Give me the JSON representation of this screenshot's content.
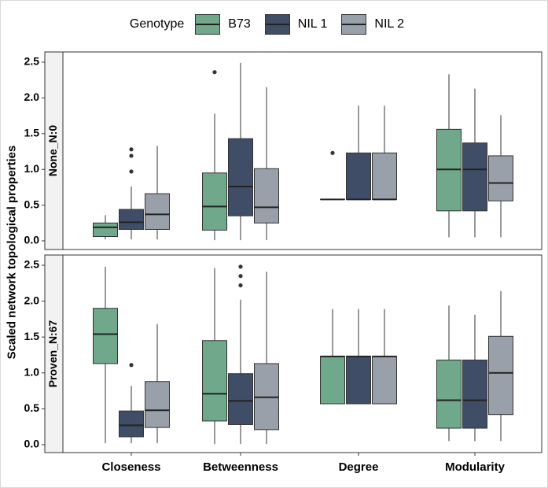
{
  "legend": {
    "title": "Genotype",
    "items": [
      {
        "label": "B73",
        "color": "#6fa88a"
      },
      {
        "label": "NIL 1",
        "color": "#3f4e66"
      },
      {
        "label": "NIL 2",
        "color": "#9aa0aa"
      }
    ]
  },
  "ylabel": "Scaled network topological properties",
  "chart_data": {
    "type": "box",
    "categories": [
      "Closeness",
      "Betweenness",
      "Degree",
      "Modularity"
    ],
    "groups": [
      "B73",
      "NIL 1",
      "NIL 2"
    ],
    "ylim": [
      0,
      2.5
    ],
    "yticks": [
      "0.0",
      "0.5",
      "1.0",
      "1.5",
      "2.0",
      "2.5"
    ],
    "facets": [
      {
        "label": "None_N:0",
        "boxes": [
          [
            {
              "min": 0.02,
              "q1": 0.06,
              "median": 0.19,
              "q3": 0.25,
              "max": 0.36,
              "outliers": []
            },
            {
              "min": 0.02,
              "q1": 0.16,
              "median": 0.26,
              "q3": 0.44,
              "max": 0.76,
              "outliers": [
                0.97,
                1.19,
                1.28
              ]
            },
            {
              "min": 0.02,
              "q1": 0.16,
              "median": 0.37,
              "q3": 0.66,
              "max": 1.33,
              "outliers": []
            }
          ],
          [
            {
              "min": 0.01,
              "q1": 0.15,
              "median": 0.48,
              "q3": 0.95,
              "max": 1.78,
              "outliers": [
                2.36
              ]
            },
            {
              "min": 0.01,
              "q1": 0.35,
              "median": 0.76,
              "q3": 1.43,
              "max": 2.49,
              "outliers": []
            },
            {
              "min": 0.01,
              "q1": 0.25,
              "median": 0.47,
              "q3": 1.01,
              "max": 2.15,
              "outliers": []
            }
          ],
          [
            {
              "min": 0.58,
              "q1": 0.58,
              "median": 0.58,
              "q3": 0.58,
              "max": 0.58,
              "outliers": [
                1.23
              ]
            },
            {
              "min": 0.58,
              "q1": 0.58,
              "median": 0.58,
              "q3": 1.23,
              "max": 1.89,
              "outliers": []
            },
            {
              "min": 0.58,
              "q1": 0.58,
              "median": 0.58,
              "q3": 1.23,
              "max": 1.89,
              "outliers": []
            }
          ],
          [
            {
              "min": 0.05,
              "q1": 0.42,
              "median": 1.0,
              "q3": 1.56,
              "max": 2.33,
              "outliers": []
            },
            {
              "min": 0.05,
              "q1": 0.42,
              "median": 1.0,
              "q3": 1.37,
              "max": 2.13,
              "outliers": []
            },
            {
              "min": 0.05,
              "q1": 0.56,
              "median": 0.81,
              "q3": 1.19,
              "max": 1.76,
              "outliers": []
            }
          ]
        ]
      },
      {
        "label": "Proven_N:67",
        "boxes": [
          [
            {
              "min": 0.02,
              "q1": 1.13,
              "median": 1.54,
              "q3": 1.9,
              "max": 2.48,
              "outliers": []
            },
            {
              "min": 0.02,
              "q1": 0.11,
              "median": 0.27,
              "q3": 0.47,
              "max": 0.82,
              "outliers": [
                1.11
              ]
            },
            {
              "min": 0.02,
              "q1": 0.24,
              "median": 0.48,
              "q3": 0.88,
              "max": 1.68,
              "outliers": []
            }
          ],
          [
            {
              "min": 0.01,
              "q1": 0.33,
              "median": 0.71,
              "q3": 1.45,
              "max": 2.46,
              "outliers": []
            },
            {
              "min": 0.01,
              "q1": 0.28,
              "median": 0.61,
              "q3": 0.99,
              "max": 2.02,
              "outliers": [
                2.22,
                2.35,
                2.48
              ]
            },
            {
              "min": 0.01,
              "q1": 0.21,
              "median": 0.66,
              "q3": 1.13,
              "max": 2.41,
              "outliers": []
            }
          ],
          [
            {
              "min": 0.57,
              "q1": 0.57,
              "median": 1.23,
              "q3": 1.23,
              "max": 1.89,
              "outliers": []
            },
            {
              "min": 0.57,
              "q1": 0.57,
              "median": 1.23,
              "q3": 1.23,
              "max": 1.89,
              "outliers": []
            },
            {
              "min": 0.57,
              "q1": 0.57,
              "median": 1.23,
              "q3": 1.23,
              "max": 1.89,
              "outliers": []
            }
          ],
          [
            {
              "min": 0.05,
              "q1": 0.23,
              "median": 0.62,
              "q3": 1.18,
              "max": 1.94,
              "outliers": []
            },
            {
              "min": 0.05,
              "q1": 0.23,
              "median": 0.62,
              "q3": 1.18,
              "max": 1.81,
              "outliers": []
            },
            {
              "min": 0.05,
              "q1": 0.42,
              "median": 1.0,
              "q3": 1.51,
              "max": 2.14,
              "outliers": []
            }
          ]
        ]
      }
    ]
  }
}
